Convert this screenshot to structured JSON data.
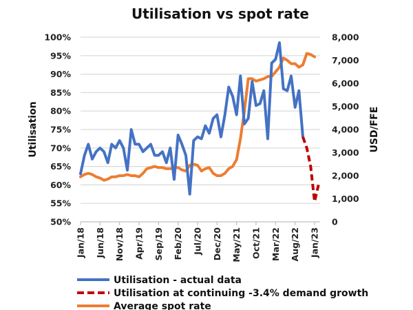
{
  "chart_data": {
    "type": "line",
    "title": "Utilisation vs spot rate",
    "xlabel": "",
    "ylabel": "Utilisation",
    "y2label": "USD/FFE",
    "ylim": [
      0.5,
      1.0
    ],
    "y2lim": [
      0,
      8000
    ],
    "grid": true,
    "legend_position": "bottom",
    "x_tick_labels": [
      "Jan/18",
      "Jun/18",
      "Nov/18",
      "Apr/19",
      "Sep/19",
      "Feb/20",
      "Jul/20",
      "Dec/20",
      "May/21",
      "Oct/21",
      "Mar/22",
      "Aug/22",
      "Jan/23"
    ],
    "y_tick_labels": [
      "50%",
      "55%",
      "60%",
      "65%",
      "70%",
      "75%",
      "80%",
      "85%",
      "90%",
      "95%",
      "100%"
    ],
    "y2_tick_labels": [
      "0",
      "1,000",
      "2,000",
      "3,000",
      "4,000",
      "5,000",
      "6,000",
      "7,000",
      "8,000"
    ],
    "x_start_month": "Jan/18",
    "series": [
      {
        "name": "Utilisation - actual data",
        "axis": "left",
        "color": "#4472C4",
        "style": "solid",
        "start_index": 0,
        "values": [
          0.63,
          0.68,
          0.71,
          0.67,
          0.69,
          0.7,
          0.69,
          0.66,
          0.71,
          0.7,
          0.72,
          0.7,
          0.64,
          0.75,
          0.71,
          0.71,
          0.69,
          0.7,
          0.71,
          0.68,
          0.68,
          0.69,
          0.66,
          0.7,
          0.615,
          0.735,
          0.71,
          0.68,
          0.575,
          0.72,
          0.73,
          0.725,
          0.76,
          0.74,
          0.78,
          0.79,
          0.73,
          0.79,
          0.865,
          0.84,
          0.79,
          0.895,
          0.765,
          0.78,
          0.88,
          0.815,
          0.82,
          0.855,
          0.725,
          0.93,
          0.94,
          0.985,
          0.86,
          0.855,
          0.895,
          0.81,
          0.855,
          0.73
        ]
      },
      {
        "name": "Utilisation at continuing -3.4% demand growth",
        "axis": "left",
        "color": "#C00000",
        "style": "dashed",
        "start_index": 57,
        "values": [
          0.73,
          0.7,
          0.65,
          0.555,
          0.6
        ]
      },
      {
        "name": "Average spot rate",
        "axis": "right",
        "color": "#ED7D31",
        "style": "solid",
        "start_index": 0,
        "values": [
          1950,
          2050,
          2100,
          2050,
          1950,
          1900,
          1800,
          1850,
          1950,
          1950,
          2000,
          2000,
          2050,
          2000,
          2000,
          1950,
          2100,
          2300,
          2350,
          2400,
          2350,
          2350,
          2300,
          2300,
          2350,
          2350,
          2250,
          2200,
          2450,
          2500,
          2450,
          2200,
          2300,
          2350,
          2100,
          2000,
          2000,
          2100,
          2300,
          2400,
          2700,
          3600,
          4800,
          6200,
          6200,
          6100,
          6150,
          6200,
          6300,
          6300,
          6500,
          6700,
          7100,
          7000,
          6850,
          6850,
          6700,
          6800,
          7300,
          7250,
          7150
        ]
      }
    ]
  }
}
